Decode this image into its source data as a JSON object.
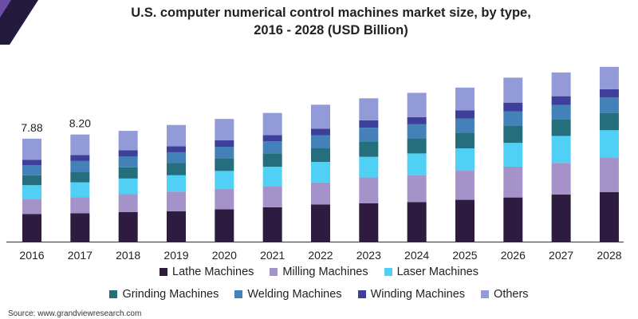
{
  "header": {
    "title_line1": "U.S. computer numerical control machines market size, by type,",
    "title_line2": "2016 - 2028 (USD Billion)"
  },
  "footer": {
    "source": "Source: www.grandviewresearch.com"
  },
  "colors": {
    "corner_dark": "#241a3e",
    "corner_accent": "#6a4ea8",
    "axis": "#333333"
  },
  "chart_data": {
    "type": "bar",
    "stacked": true,
    "title": "U.S. computer numerical control machines market size, by type, 2016 - 2028 (USD Billion)",
    "categories": [
      "2016",
      "2017",
      "2018",
      "2019",
      "2020",
      "2021",
      "2022",
      "2023",
      "2024",
      "2025",
      "2026",
      "2027",
      "2028"
    ],
    "totals_labels": [
      "7.88",
      "8.20",
      "",
      "",
      "",
      "",
      "",
      "",
      "",
      "",
      "",
      "",
      ""
    ],
    "ylim": [
      0,
      13
    ],
    "grid": false,
    "legend_position": "bottom",
    "series": [
      {
        "name": "Lathe Machines",
        "color": "#2d1b40",
        "values": [
          2.12,
          2.17,
          2.27,
          2.33,
          2.47,
          2.63,
          2.85,
          2.93,
          3.03,
          3.2,
          3.38,
          3.6,
          3.8
        ]
      },
      {
        "name": "Milling Machines",
        "color": "#a493c8",
        "values": [
          1.14,
          1.24,
          1.36,
          1.5,
          1.58,
          1.63,
          1.68,
          1.98,
          2.04,
          2.23,
          2.36,
          2.43,
          2.65
        ]
      },
      {
        "name": "Laser Machines",
        "color": "#4fd0f4",
        "values": [
          1.06,
          1.13,
          1.2,
          1.25,
          1.36,
          1.47,
          1.57,
          1.58,
          1.68,
          1.71,
          1.82,
          2.06,
          2.08
        ]
      },
      {
        "name": "Grinding Machines",
        "color": "#246e7e",
        "values": [
          0.76,
          0.82,
          0.86,
          0.93,
          0.98,
          1.03,
          1.08,
          1.18,
          1.17,
          1.2,
          1.29,
          1.25,
          1.32
        ]
      },
      {
        "name": "Welding Machines",
        "color": "#4381b8",
        "values": [
          0.76,
          0.81,
          0.84,
          0.83,
          0.87,
          0.91,
          0.95,
          1.05,
          1.06,
          1.08,
          1.13,
          1.11,
          1.18
        ]
      },
      {
        "name": "Winding Machines",
        "color": "#3d3f9a",
        "values": [
          0.43,
          0.45,
          0.46,
          0.46,
          0.49,
          0.49,
          0.52,
          0.56,
          0.55,
          0.62,
          0.66,
          0.68,
          0.63
        ]
      },
      {
        "name": "Others",
        "color": "#939ad8",
        "values": [
          1.61,
          1.58,
          1.49,
          1.63,
          1.64,
          1.69,
          1.83,
          1.69,
          1.86,
          1.75,
          1.91,
          1.82,
          1.72
        ]
      }
    ]
  }
}
